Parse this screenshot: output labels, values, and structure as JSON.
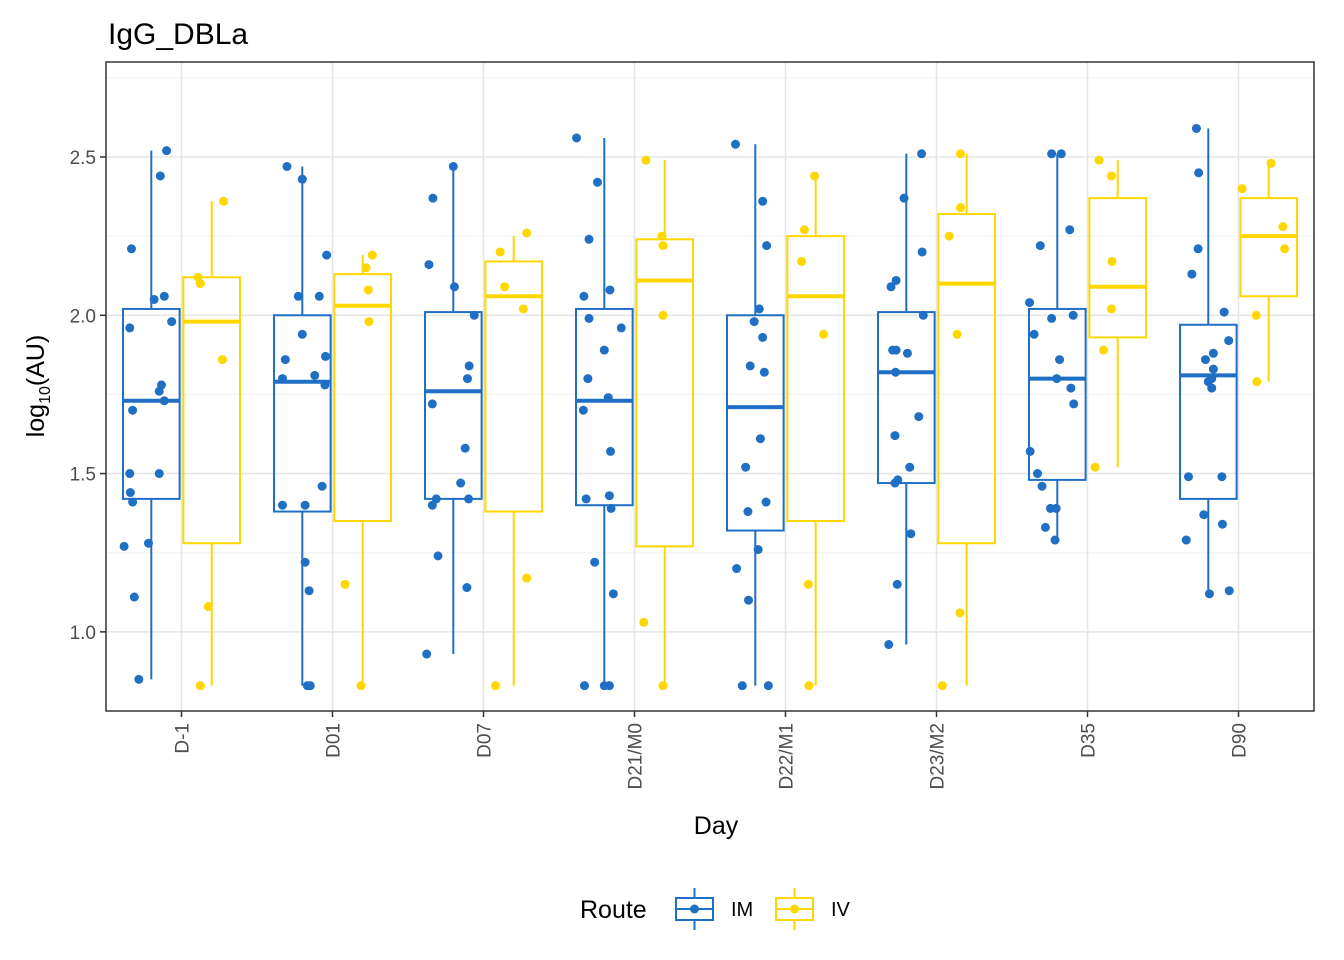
{
  "chart_data": {
    "type": "boxplot",
    "title": "IgG_DBLa",
    "xlabel": "Day",
    "ylabel_main": "log",
    "ylabel_sub": "10",
    "ylabel_rest": "(AU)",
    "ylim": [
      0.75,
      2.8
    ],
    "yticks": [
      1.0,
      1.5,
      2.0,
      2.5
    ],
    "ytick_labels": [
      "1.0",
      "1.5",
      "2.0",
      "2.5"
    ],
    "categories": [
      "D-1",
      "D01",
      "D07",
      "D21/M0",
      "D22/M1",
      "D23/M2",
      "D35",
      "D90"
    ],
    "grid": true,
    "legend": {
      "title": "Route",
      "position": "bottom"
    },
    "series": [
      {
        "name": "IM",
        "color": "#1f6fc4",
        "boxes": [
          {
            "whisker_low": 0.85,
            "q1": 1.42,
            "median": 1.73,
            "q3": 2.02,
            "whisker_high": 2.52
          },
          {
            "whisker_low": 0.83,
            "q1": 1.38,
            "median": 1.79,
            "q3": 2.0,
            "whisker_high": 2.47
          },
          {
            "whisker_low": 0.93,
            "q1": 1.42,
            "median": 1.76,
            "q3": 2.01,
            "whisker_high": 2.47
          },
          {
            "whisker_low": 0.83,
            "q1": 1.4,
            "median": 1.73,
            "q3": 2.02,
            "whisker_high": 2.56
          },
          {
            "whisker_low": 0.83,
            "q1": 1.32,
            "median": 1.71,
            "q3": 2.0,
            "whisker_high": 2.54
          },
          {
            "whisker_low": 0.96,
            "q1": 1.47,
            "median": 1.82,
            "q3": 2.01,
            "whisker_high": 2.51
          },
          {
            "whisker_low": 1.29,
            "q1": 1.48,
            "median": 1.8,
            "q3": 2.02,
            "whisker_high": 2.51
          },
          {
            "whisker_low": 1.12,
            "q1": 1.42,
            "median": 1.81,
            "q3": 1.97,
            "whisker_high": 2.59
          }
        ],
        "points": [
          [
            [
              0.85,
              -0.22
            ],
            [
              1.11,
              -0.3
            ],
            [
              1.27,
              -0.48
            ],
            [
              1.28,
              -0.05
            ],
            [
              1.41,
              -0.33
            ],
            [
              1.44,
              -0.37
            ],
            [
              1.5,
              -0.38
            ],
            [
              1.5,
              0.14
            ],
            [
              1.7,
              -0.33
            ],
            [
              1.73,
              0.23
            ],
            [
              1.76,
              0.14
            ],
            [
              1.78,
              0.18
            ],
            [
              1.96,
              -0.38
            ],
            [
              1.98,
              0.36
            ],
            [
              2.05,
              0.05
            ],
            [
              2.06,
              0.23
            ],
            [
              2.21,
              -0.35
            ],
            [
              2.44,
              0.16
            ],
            [
              2.52,
              0.27
            ]
          ],
          [
            [
              0.83,
              0.09
            ],
            [
              0.83,
              0.14
            ],
            [
              1.13,
              0.12
            ],
            [
              1.22,
              0.05
            ],
            [
              1.4,
              -0.35
            ],
            [
              1.4,
              0.05
            ],
            [
              1.46,
              0.35
            ],
            [
              1.78,
              0.4
            ],
            [
              1.8,
              -0.35
            ],
            [
              1.81,
              0.22
            ],
            [
              1.86,
              -0.3
            ],
            [
              1.87,
              0.41
            ],
            [
              1.94,
              0.0
            ],
            [
              2.06,
              -0.07
            ],
            [
              2.06,
              0.3
            ],
            [
              2.19,
              0.43
            ],
            [
              2.43,
              0.0
            ],
            [
              2.47,
              -0.27
            ]
          ],
          [
            [
              0.93,
              -0.47
            ],
            [
              1.14,
              0.24
            ],
            [
              1.24,
              -0.27
            ],
            [
              1.4,
              -0.37
            ],
            [
              1.42,
              -0.3
            ],
            [
              1.42,
              0.27
            ],
            [
              1.47,
              0.13
            ],
            [
              1.58,
              0.21
            ],
            [
              1.72,
              -0.37
            ],
            [
              1.8,
              0.25
            ],
            [
              1.84,
              0.28
            ],
            [
              2.0,
              0.37
            ],
            [
              2.09,
              0.02
            ],
            [
              2.16,
              -0.43
            ],
            [
              2.37,
              -0.36
            ],
            [
              2.47,
              0.0
            ]
          ],
          [
            [
              0.83,
              -0.35
            ],
            [
              0.83,
              0.0
            ],
            [
              0.83,
              0.09
            ],
            [
              1.12,
              0.16
            ],
            [
              1.22,
              -0.17
            ],
            [
              1.39,
              0.12
            ],
            [
              1.42,
              -0.32
            ],
            [
              1.43,
              0.09
            ],
            [
              1.57,
              0.11
            ],
            [
              1.7,
              -0.37
            ],
            [
              1.74,
              0.07
            ],
            [
              1.8,
              -0.29
            ],
            [
              1.89,
              0.0
            ],
            [
              1.96,
              0.3
            ],
            [
              1.99,
              -0.27
            ],
            [
              2.06,
              -0.36
            ],
            [
              2.08,
              0.1
            ],
            [
              2.24,
              -0.27
            ],
            [
              2.42,
              -0.12
            ],
            [
              2.56,
              -0.49
            ]
          ],
          [
            [
              0.83,
              -0.23
            ],
            [
              0.83,
              0.23
            ],
            [
              1.1,
              -0.12
            ],
            [
              1.2,
              -0.33
            ],
            [
              1.26,
              0.05
            ],
            [
              1.38,
              -0.13
            ],
            [
              1.41,
              0.19
            ],
            [
              1.52,
              -0.17
            ],
            [
              1.61,
              0.09
            ],
            [
              1.82,
              0.16
            ],
            [
              1.84,
              -0.09
            ],
            [
              1.93,
              0.13
            ],
            [
              1.98,
              -0.02
            ],
            [
              2.02,
              0.07
            ],
            [
              2.22,
              0.2
            ],
            [
              2.36,
              0.13
            ],
            [
              2.54,
              -0.35
            ]
          ],
          [
            [
              0.96,
              -0.31
            ],
            [
              1.15,
              -0.16
            ],
            [
              1.31,
              0.08
            ],
            [
              1.47,
              -0.2
            ],
            [
              1.48,
              -0.15
            ],
            [
              1.52,
              0.06
            ],
            [
              1.62,
              -0.2
            ],
            [
              1.68,
              0.22
            ],
            [
              1.82,
              -0.19
            ],
            [
              1.88,
              0.02
            ],
            [
              1.89,
              -0.18
            ],
            [
              1.89,
              -0.24
            ],
            [
              2.0,
              0.3
            ],
            [
              2.09,
              -0.27
            ],
            [
              2.11,
              -0.18
            ],
            [
              2.2,
              0.28
            ],
            [
              2.37,
              -0.04
            ],
            [
              2.51,
              0.27
            ]
          ],
          [
            [
              1.29,
              -0.04
            ],
            [
              1.33,
              -0.21
            ],
            [
              1.39,
              -0.12
            ],
            [
              1.39,
              -0.02
            ],
            [
              1.46,
              -0.27
            ],
            [
              1.5,
              -0.35
            ],
            [
              1.57,
              -0.48
            ],
            [
              1.72,
              0.29
            ],
            [
              1.77,
              0.24
            ],
            [
              1.8,
              -0.01
            ],
            [
              1.86,
              0.04
            ],
            [
              1.94,
              -0.41
            ],
            [
              1.99,
              -0.1
            ],
            [
              2.0,
              0.28
            ],
            [
              2.04,
              -0.49
            ],
            [
              2.22,
              -0.3
            ],
            [
              2.27,
              0.22
            ],
            [
              2.51,
              -0.1
            ],
            [
              2.51,
              0.07
            ]
          ],
          [
            [
              1.12,
              0.02
            ],
            [
              1.13,
              0.37
            ],
            [
              1.29,
              -0.39
            ],
            [
              1.34,
              0.25
            ],
            [
              1.37,
              -0.08
            ],
            [
              1.49,
              -0.35
            ],
            [
              1.49,
              0.24
            ],
            [
              1.77,
              0.06
            ],
            [
              1.79,
              0.0
            ],
            [
              1.8,
              0.06
            ],
            [
              1.83,
              0.09
            ],
            [
              1.86,
              -0.05
            ],
            [
              1.88,
              0.09
            ],
            [
              1.92,
              0.36
            ],
            [
              2.01,
              0.28
            ],
            [
              2.13,
              -0.29
            ],
            [
              2.21,
              -0.18
            ],
            [
              2.45,
              -0.17
            ],
            [
              2.59,
              -0.21
            ]
          ]
        ]
      },
      {
        "name": "IV",
        "color": "#ffd700",
        "boxes": [
          {
            "whisker_low": 0.83,
            "q1": 1.28,
            "median": 1.98,
            "q3": 2.12,
            "whisker_high": 2.36
          },
          {
            "whisker_low": 0.83,
            "q1": 1.35,
            "median": 2.03,
            "q3": 2.13,
            "whisker_high": 2.19
          },
          {
            "whisker_low": 0.83,
            "q1": 1.38,
            "median": 2.06,
            "q3": 2.17,
            "whisker_high": 2.25
          },
          {
            "whisker_low": 0.83,
            "q1": 1.27,
            "median": 2.11,
            "q3": 2.24,
            "whisker_high": 2.49
          },
          {
            "whisker_low": 0.83,
            "q1": 1.35,
            "median": 2.06,
            "q3": 2.25,
            "whisker_high": 2.44
          },
          {
            "whisker_low": 0.83,
            "q1": 1.28,
            "median": 2.1,
            "q3": 2.32,
            "whisker_high": 2.51
          },
          {
            "whisker_low": 1.52,
            "q1": 1.93,
            "median": 2.09,
            "q3": 2.37,
            "whisker_high": 2.49
          },
          {
            "whisker_low": 1.79,
            "q1": 2.06,
            "median": 2.25,
            "q3": 2.37,
            "whisker_high": 2.48
          }
        ],
        "points": [
          [
            [
              0.83,
              -0.2
            ],
            [
              1.08,
              -0.06
            ],
            [
              1.86,
              0.19
            ],
            [
              2.1,
              -0.2
            ],
            [
              2.12,
              -0.24
            ],
            [
              2.36,
              0.21
            ]
          ],
          [
            [
              0.83,
              -0.03
            ],
            [
              1.15,
              -0.31
            ],
            [
              1.98,
              0.11
            ],
            [
              2.08,
              0.1
            ],
            [
              2.15,
              0.06
            ],
            [
              2.19,
              0.17
            ]
          ],
          [
            [
              0.83,
              -0.32
            ],
            [
              1.17,
              0.23
            ],
            [
              2.02,
              0.17
            ],
            [
              2.09,
              -0.16
            ],
            [
              2.2,
              -0.24
            ],
            [
              2.26,
              0.23
            ]
          ],
          [
            [
              0.83,
              -0.03
            ],
            [
              1.03,
              -0.37
            ],
            [
              2.0,
              -0.03
            ],
            [
              2.22,
              -0.03
            ],
            [
              2.25,
              -0.05
            ],
            [
              2.49,
              -0.33
            ]
          ],
          [
            [
              0.83,
              -0.12
            ],
            [
              1.15,
              -0.13
            ],
            [
              1.94,
              0.14
            ],
            [
              2.17,
              -0.25
            ],
            [
              2.27,
              -0.2
            ],
            [
              2.44,
              -0.02
            ]
          ],
          [
            [
              0.83,
              -0.43
            ],
            [
              1.06,
              -0.12
            ],
            [
              1.94,
              -0.17
            ],
            [
              2.25,
              -0.31
            ],
            [
              2.34,
              -0.11
            ],
            [
              2.51,
              -0.11
            ]
          ],
          [
            [
              1.52,
              -0.4
            ],
            [
              1.89,
              -0.25
            ],
            [
              2.02,
              -0.11
            ],
            [
              2.17,
              -0.1
            ],
            [
              2.44,
              -0.11
            ],
            [
              2.49,
              -0.33
            ]
          ],
          [
            [
              1.79,
              -0.21
            ],
            [
              2.0,
              -0.22
            ],
            [
              2.21,
              0.28
            ],
            [
              2.28,
              0.25
            ],
            [
              2.4,
              -0.47
            ],
            [
              2.48,
              0.04
            ]
          ]
        ]
      }
    ]
  }
}
